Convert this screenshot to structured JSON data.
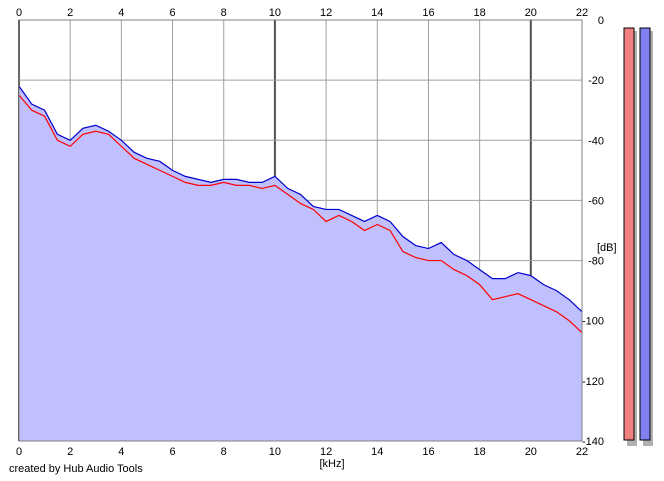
{
  "chart_data": {
    "type": "area",
    "xlabel": "[kHz]",
    "ylabel": "[dB]",
    "xlim": [
      0,
      22
    ],
    "ylim": [
      -140,
      0
    ],
    "x_ticks": [
      "0",
      "2",
      "4",
      "6",
      "8",
      "10",
      "12",
      "14",
      "16",
      "18",
      "20",
      "22"
    ],
    "y_ticks": [
      "0",
      "-20",
      "-40",
      "-60",
      "-80",
      "-100",
      "-120",
      "-140"
    ],
    "grid": true,
    "fill_color": "#c0c0ff",
    "series": [
      {
        "color": "#ff0000",
        "x": [
          0,
          0.5,
          1,
          1.5,
          2,
          2.5,
          3,
          3.5,
          4,
          4.5,
          5,
          5.5,
          6,
          6.5,
          7,
          7.5,
          8,
          8.5,
          9,
          9.5,
          10,
          10.5,
          11,
          11.5,
          12,
          12.5,
          13,
          13.5,
          14,
          14.5,
          15,
          15.5,
          16,
          16.5,
          17,
          17.5,
          18,
          18.5,
          19,
          19.5,
          20,
          20.5,
          21,
          21.5,
          22
        ],
        "y": [
          -25,
          -30,
          -32,
          -40,
          -42,
          -38,
          -37,
          -38,
          -42,
          -46,
          -48,
          -50,
          -52,
          -54,
          -55,
          -55,
          -54,
          -55,
          -55,
          -56,
          -55,
          -58,
          -61,
          -63,
          -67,
          -65,
          -67,
          -70,
          -68,
          -70,
          -77,
          -79,
          -80,
          -80,
          -83,
          -85,
          -88,
          -93,
          -92,
          -91,
          -93,
          -95,
          -97,
          -100,
          -104
        ]
      },
      {
        "color": "#0000cc",
        "x": [
          0,
          0.5,
          1,
          1.5,
          2,
          2.5,
          3,
          3.5,
          4,
          4.5,
          5,
          5.5,
          6,
          6.5,
          7,
          7.5,
          8,
          8.5,
          9,
          9.5,
          10,
          10.5,
          11,
          11.5,
          12,
          12.5,
          13,
          13.5,
          14,
          14.5,
          15,
          15.5,
          16,
          16.5,
          17,
          17.5,
          18,
          18.5,
          19,
          19.5,
          20,
          20.5,
          21,
          21.5,
          22
        ],
        "y": [
          -22,
          -28,
          -30,
          -38,
          -40,
          -36,
          -35,
          -37,
          -40,
          -44,
          -46,
          -47,
          -50,
          -52,
          -53,
          -54,
          -53,
          -53,
          -54,
          -54,
          -52,
          -56,
          -58,
          -62,
          -63,
          -63,
          -65,
          -67,
          -65,
          -67,
          -72,
          -75,
          -76,
          -74,
          -78,
          -80,
          -83,
          -86,
          -86,
          -84,
          -85,
          -88,
          -90,
          -93,
          -97
        ]
      }
    ],
    "meters": [
      {
        "color": "#f08080",
        "level_db": -140
      },
      {
        "color": "#8080f0",
        "level_db": -140
      }
    ]
  },
  "credit": "created by Hub Audio Tools"
}
